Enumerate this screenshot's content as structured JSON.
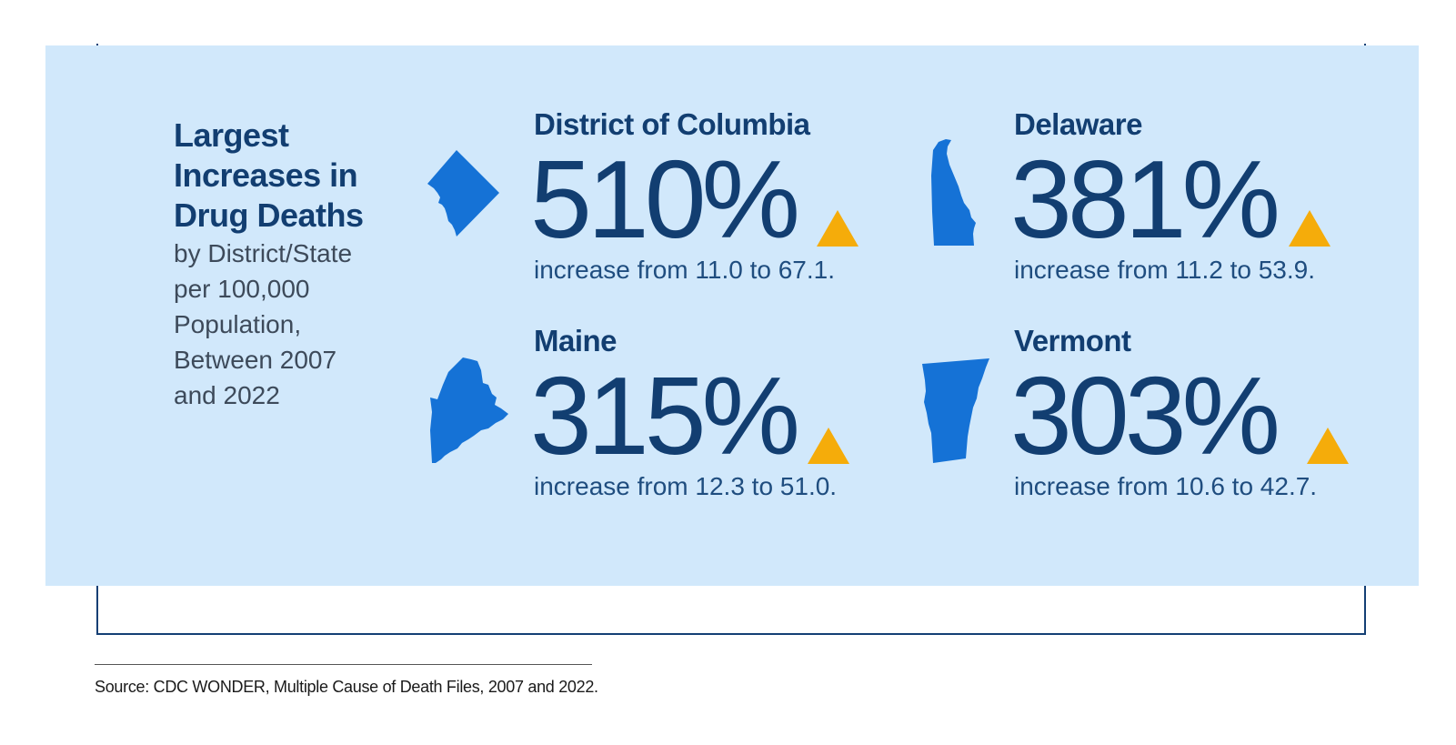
{
  "headline": {
    "title_lines": [
      "Largest",
      "Increases in",
      "Drug Deaths"
    ],
    "subtitle_lines": [
      "by District/State",
      "per 100,000",
      "Population,",
      "Between 2007",
      "and 2022"
    ]
  },
  "stats": [
    {
      "name": "District of Columbia",
      "value": "510%",
      "description": "increase from 11.0 to 67.1.",
      "icon": "dc-map-icon"
    },
    {
      "name": "Delaware",
      "value": "381%",
      "description": "increase from 11.2 to 53.9.",
      "icon": "delaware-map-icon"
    },
    {
      "name": "Maine",
      "value": "315%",
      "description": "increase from 12.3 to 51.0.",
      "icon": "maine-map-icon"
    },
    {
      "name": "Vermont",
      "value": "303%",
      "description": "increase from 10.6 to 42.7.",
      "icon": "vermont-map-icon"
    }
  ],
  "indicator": {
    "icon": "up-triangle-icon",
    "color": "#f5ac0a"
  },
  "colors": {
    "panel": "#d1e8fb",
    "navy": "#123e71",
    "map_blue": "#1572d6"
  },
  "source": "Source: CDC WONDER, Multiple Cause of Death Files, 2007 and 2022."
}
